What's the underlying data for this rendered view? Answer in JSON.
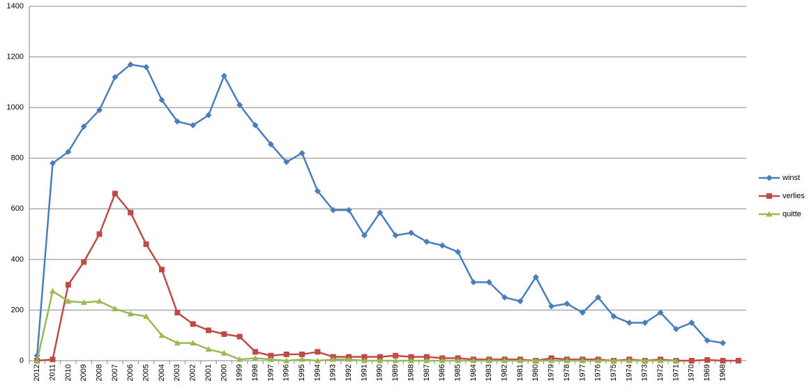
{
  "chart_data": {
    "type": "line",
    "categories": [
      "2012",
      "2011",
      "2010",
      "2009",
      "2008",
      "2007",
      "2006",
      "2005",
      "2004",
      "2003",
      "2002",
      "2001",
      "2000",
      "1999",
      "1998",
      "1997",
      "1996",
      "1995",
      "1994",
      "1993",
      "1992",
      "1991",
      "1990",
      "1989",
      "1988",
      "1987",
      "1986",
      "1985",
      "1984",
      "1983",
      "1982",
      "1981",
      "1980",
      "1979",
      "1978",
      "1977",
      "1976",
      "1975",
      "1974",
      "1973",
      "1972",
      "1971",
      "1970",
      "1969",
      "1968",
      null
    ],
    "series": [
      {
        "name": "winst",
        "color": "#4a7ebb",
        "marker": "diamond",
        "values": [
          20,
          780,
          825,
          925,
          990,
          1120,
          1170,
          1160,
          1030,
          945,
          930,
          970,
          1125,
          1010,
          930,
          855,
          785,
          820,
          670,
          595,
          595,
          495,
          585,
          495,
          505,
          470,
          455,
          430,
          310,
          310,
          250,
          235,
          330,
          215,
          225,
          190,
          250,
          175,
          150,
          150,
          190,
          125,
          150,
          80,
          70,
          null
        ]
      },
      {
        "name": "verlies",
        "color": "#be4b48",
        "marker": "square",
        "values": [
          0,
          5,
          300,
          390,
          500,
          660,
          585,
          460,
          360,
          190,
          145,
          120,
          105,
          95,
          35,
          20,
          25,
          25,
          35,
          15,
          15,
          15,
          15,
          20,
          15,
          15,
          10,
          10,
          5,
          5,
          5,
          5,
          0,
          10,
          5,
          5,
          5,
          0,
          5,
          0,
          5,
          0,
          0,
          3,
          0,
          0
        ]
      },
      {
        "name": "quitte",
        "color": "#98b954",
        "marker": "triangle",
        "values": [
          0,
          275,
          235,
          230,
          235,
          205,
          185,
          175,
          100,
          70,
          70,
          45,
          30,
          5,
          10,
          5,
          0,
          5,
          0,
          5,
          5,
          0,
          0,
          0,
          0,
          0,
          0,
          0,
          0,
          0,
          0,
          0,
          0,
          0,
          0,
          0,
          0,
          0,
          0,
          0,
          0,
          0,
          null,
          null,
          null,
          null
        ]
      }
    ],
    "ylim": [
      0,
      1400
    ],
    "yticks": [
      0,
      200,
      400,
      600,
      800,
      1000,
      1200,
      1400
    ],
    "grid": true,
    "legend": "right"
  }
}
